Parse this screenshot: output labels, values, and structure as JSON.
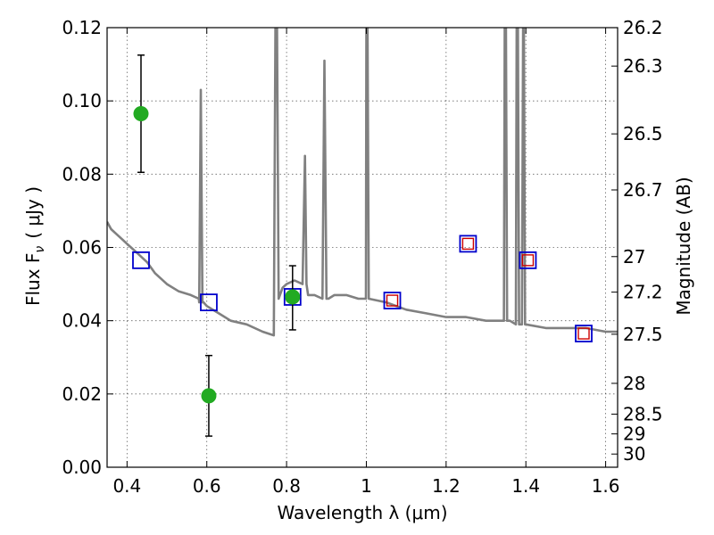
{
  "chart_data": {
    "type": "scatter",
    "title": "",
    "xlabel_text": "Wavelength  λ (μm)",
    "ylabel_text": "Flux  F",
    "ylabel_sub": "ν",
    "ylabel_unit": "( μJy )",
    "y2label": "Magnitude (AB)",
    "xlim": [
      0.35,
      1.63
    ],
    "ylim": [
      0.0,
      0.12
    ],
    "grid": true,
    "x_ticks": [
      0.4,
      0.6,
      0.8,
      1.0,
      1.2,
      1.4,
      1.6
    ],
    "x_tick_labels": [
      "0.4",
      "0.6",
      "0.8",
      "1",
      "1.2",
      "1.4",
      "1.6"
    ],
    "y_ticks": [
      0.0,
      0.02,
      0.04,
      0.06,
      0.08,
      0.1,
      0.12
    ],
    "y_tick_labels": [
      "0.00",
      "0.02",
      "0.04",
      "0.06",
      "0.08",
      "0.10",
      "0.12"
    ],
    "y2_ticks": [
      {
        "label": "26.2",
        "flux": 0.12
      },
      {
        "label": "26.3",
        "flux": 0.1095
      },
      {
        "label": "26.5",
        "flux": 0.091
      },
      {
        "label": "26.7",
        "flux": 0.0757
      },
      {
        "label": "27",
        "flux": 0.0575
      },
      {
        "label": "27.2",
        "flux": 0.0478
      },
      {
        "label": "27.5",
        "flux": 0.0363
      },
      {
        "label": "28",
        "flux": 0.0229
      },
      {
        "label": "28.5",
        "flux": 0.0145
      },
      {
        "label": "29",
        "flux": 0.0091
      },
      {
        "label": "30",
        "flux": 0.0036
      }
    ],
    "series": [
      {
        "kind": "sed-model-line",
        "color": "#808080",
        "x": [
          0.35,
          0.36,
          0.37,
          0.38,
          0.39,
          0.4,
          0.41,
          0.42,
          0.43,
          0.44,
          0.45,
          0.47,
          0.5,
          0.53,
          0.56,
          0.58,
          0.581,
          0.585,
          0.589,
          0.592,
          0.6,
          0.63,
          0.66,
          0.7,
          0.74,
          0.768,
          0.772,
          0.776,
          0.78,
          0.79,
          0.8,
          0.82,
          0.84,
          0.846,
          0.85,
          0.854,
          0.87,
          0.89,
          0.895,
          0.9,
          0.905,
          0.92,
          0.95,
          0.98,
          0.999,
          1.0,
          1.003,
          1.006,
          1.05,
          1.1,
          1.15,
          1.2,
          1.25,
          1.3,
          1.345,
          1.347,
          1.35,
          1.353,
          1.36,
          1.375,
          1.377,
          1.38,
          1.383,
          1.39,
          1.393,
          1.395,
          1.398,
          1.4,
          1.45,
          1.5,
          1.55,
          1.6,
          1.63
        ],
        "y": [
          0.067,
          0.065,
          0.064,
          0.063,
          0.062,
          0.061,
          0.06,
          0.059,
          0.058,
          0.057,
          0.056,
          0.053,
          0.05,
          0.048,
          0.047,
          0.046,
          0.045,
          0.103,
          0.045,
          0.045,
          0.044,
          0.042,
          0.04,
          0.039,
          0.037,
          0.036,
          0.12,
          0.12,
          0.046,
          0.049,
          0.05,
          0.051,
          0.05,
          0.085,
          0.05,
          0.047,
          0.047,
          0.046,
          0.111,
          0.046,
          0.046,
          0.047,
          0.047,
          0.046,
          0.046,
          0.12,
          0.12,
          0.046,
          0.045,
          0.043,
          0.042,
          0.041,
          0.041,
          0.04,
          0.04,
          0.12,
          0.12,
          0.04,
          0.04,
          0.039,
          0.12,
          0.12,
          0.039,
          0.039,
          0.12,
          0.12,
          0.039,
          0.039,
          0.038,
          0.038,
          0.038,
          0.037,
          0.037
        ]
      }
    ],
    "model_squares": {
      "color": "#0000cc",
      "x": [
        0.435,
        0.605,
        0.815,
        1.065,
        1.255,
        1.405,
        1.545
      ],
      "y": [
        0.0565,
        0.045,
        0.0465,
        0.0455,
        0.061,
        0.0565,
        0.0365
      ]
    },
    "observed_squares": {
      "color": "#cc0000",
      "x": [
        1.065,
        1.255,
        1.405,
        1.545
      ],
      "y": [
        0.0455,
        0.061,
        0.0565,
        0.0365
      ]
    },
    "photometry": {
      "color": "#22aa22",
      "points": [
        {
          "x": 0.435,
          "y": 0.0965,
          "err_low": 0.0805,
          "err_high": 0.1125
        },
        {
          "x": 0.605,
          "y": 0.0195,
          "err_low": 0.0085,
          "err_high": 0.0305
        },
        {
          "x": 0.815,
          "y": 0.0465,
          "err_low": 0.0375,
          "err_high": 0.055
        }
      ]
    }
  }
}
